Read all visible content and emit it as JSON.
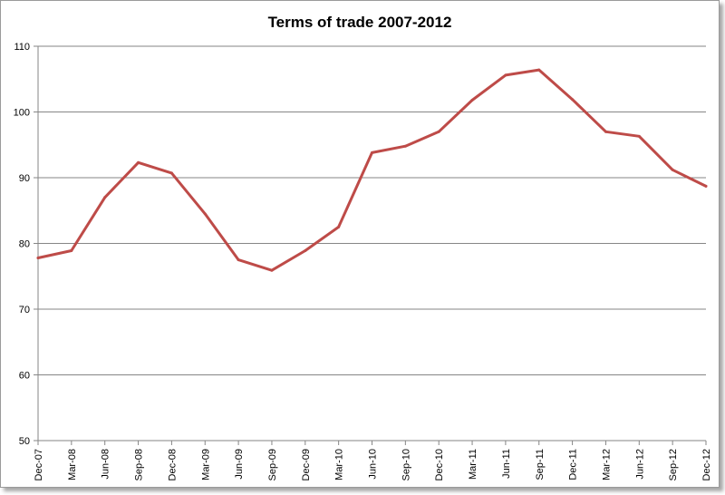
{
  "chart_data": {
    "type": "line",
    "title": "Terms of trade 2007-2012",
    "xlabel": "",
    "ylabel": "",
    "ylim": [
      50,
      110
    ],
    "yticks": [
      "50",
      "60",
      "70",
      "80",
      "90",
      "100",
      "110"
    ],
    "grid": "horizontal",
    "legend": "none",
    "categories": [
      "Dec-07",
      "Mar-08",
      "Jun-08",
      "Sep-08",
      "Dec-08",
      "Mar-09",
      "Jun-09",
      "Sep-09",
      "Dec-09",
      "Mar-10",
      "Jun-10",
      "Sep-10",
      "Dec-10",
      "Mar-11",
      "Jun-11",
      "Sep-11",
      "Dec-11",
      "Mar-12",
      "Jun-12",
      "Sep-12",
      "Dec-12"
    ],
    "series": [
      {
        "values": [
          77.8,
          78.9,
          87.0,
          92.3,
          90.7,
          84.5,
          77.5,
          75.9,
          78.9,
          82.5,
          93.8,
          94.8,
          97.0,
          101.8,
          105.6,
          106.4,
          101.9,
          97.0,
          96.3,
          91.2,
          88.7
        ]
      }
    ],
    "colors": {
      "line": "#be4b48",
      "grid": "#868686",
      "axis": "#868686"
    }
  }
}
